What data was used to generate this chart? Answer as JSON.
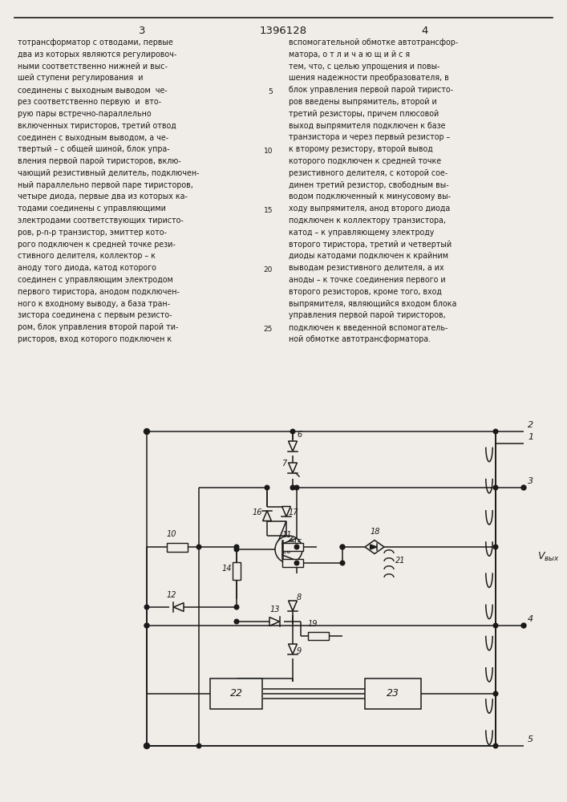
{
  "page_title": "1396128",
  "page_left_num": "3",
  "page_right_num": "4",
  "background_color": "#f0ede8",
  "text_color": "#1a1a1a",
  "line_color": "#1a1a1a",
  "left_text_lines": [
    "тотрансформатор с отводами, первые",
    "два из которых являются регулировоч-",
    "ными соответственно нижней и выс-",
    "шей ступени регулирования  и",
    "соединены с выходным выводом  че-",
    "рез соответственно первую  и  вто-",
    "рую пары встречно-параллельно",
    "включенных тиристоров, третий отвод",
    "соединен с выходным выводом, а че-",
    "твертый – с общей шиной, блок упра-",
    "вления первой парой тиристоров, вклю-",
    "чающий резистивный делитель, подключен-",
    "ный параллельно первой паре тиристоров,",
    "четыре диода, первые два из которых ка-",
    "тодами соединены с управляющими",
    "электродами соответствующих тиристо-",
    "ров, р-n-р транзистор, эмиттер кото-",
    "рого подключен к средней точке рези-",
    "стивного делителя, коллектор – к",
    "аноду того диода, катод которого",
    "соединен с управляющим электродом",
    "первого тиристора, анодом подключен-",
    "ного к входному выводу, а база тран-",
    "зистора соединена с первым резисто-",
    "ром, блок управления второй парой ти-",
    "ристоров, вход которого подключен к"
  ],
  "right_text_lines": [
    "вспомогательной обмотке автотрансфор-",
    "матора, о т л и ч а ю щ и й с я",
    "тем, что, с целью упрощения и повы-",
    "шения надежности преобразователя, в",
    "блок управления первой парой тиристо-",
    "ров введены выпрямитель, второй и",
    "третий резисторы, причем плюсовой",
    "выход выпрямителя подключен к базе",
    "транзистора и через первый резистор –",
    "к второму резистору, второй вывод",
    "которого подключен к средней точке",
    "резистивного делителя, с которой сое-",
    "динен третий резистор, свободным вы-",
    "водом подключенный к минусовому вы-",
    "ходу выпрямителя, анод второго диода",
    "подключен к коллектору транзистора,",
    "катод – к управляющему электроду",
    "второго тиристора, третий и четвертый",
    "диоды катодами подключен к крайним",
    "выводам резистивного делителя, а их",
    "аноды – к точке соединения первого и",
    "второго резисторов, кроме того, вход",
    "выпрямителя, являющийся входом блока",
    "управления первой парой тиристоров,",
    "подключен к введенной вспомогатель-",
    "ной обмотке автотрансформатора."
  ],
  "line_numbers": [
    "5",
    "10",
    "15",
    "20",
    "25"
  ]
}
